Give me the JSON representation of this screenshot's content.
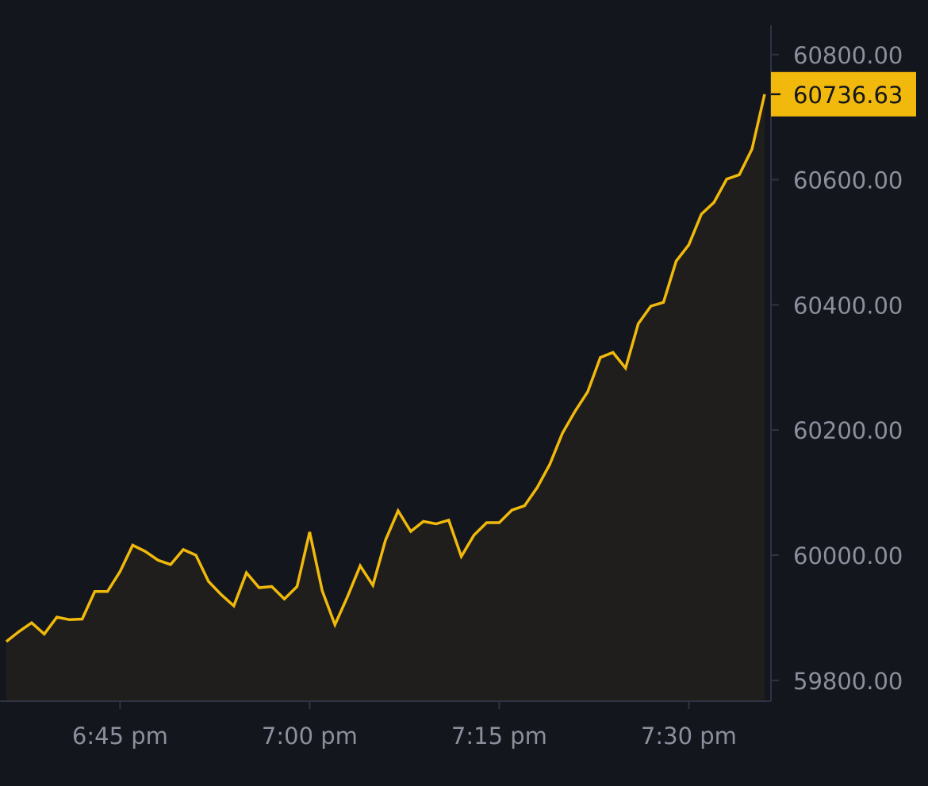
{
  "chart_data": {
    "type": "area",
    "x": [
      "6:36",
      "6:37",
      "6:38",
      "6:39",
      "6:40",
      "6:41",
      "6:42",
      "6:43",
      "6:44",
      "6:45",
      "6:46",
      "6:47",
      "6:48",
      "6:49",
      "6:50",
      "6:51",
      "6:52",
      "6:53",
      "6:54",
      "6:55",
      "6:56",
      "6:57",
      "6:58",
      "6:59",
      "7:00",
      "7:01",
      "7:02",
      "7:03",
      "7:04",
      "7:05",
      "7:06",
      "7:07",
      "7:08",
      "7:09",
      "7:10",
      "7:11",
      "7:12",
      "7:13",
      "7:14",
      "7:15",
      "7:16",
      "7:17",
      "7:18",
      "7:19",
      "7:20",
      "7:21",
      "7:22",
      "7:23",
      "7:24",
      "7:25",
      "7:26",
      "7:27",
      "7:28",
      "7:29",
      "7:30",
      "7:31",
      "7:32",
      "7:33",
      "7:34",
      "7:35",
      "7:36"
    ],
    "values": [
      59862,
      59878,
      59892,
      59874,
      59901,
      59897,
      59898,
      59942,
      59942,
      59974,
      60016,
      60006,
      59992,
      59985,
      60009,
      60000,
      59958,
      59937,
      59919,
      59972,
      59948,
      59950,
      59930,
      59950,
      60037,
      59943,
      59889,
      59934,
      59983,
      59952,
      60024,
      60071,
      60038,
      60054,
      60050,
      60056,
      59998,
      60032,
      60052,
      60052,
      60072,
      60079,
      60108,
      60145,
      60195,
      60230,
      60261,
      60316,
      60324,
      60299,
      60370,
      60398,
      60404,
      60470,
      60496,
      60545,
      60564,
      60601,
      60608,
      60649,
      60736.63
    ],
    "yticks": [
      "60800.00",
      "60600.00",
      "60400.00",
      "60200.00",
      "60000.00",
      "59800.00"
    ],
    "ytick_values": [
      60800,
      60600,
      60400,
      60200,
      60000,
      59800
    ],
    "xticks": [
      "6:45 pm",
      "7:00 pm",
      "7:15 pm",
      "7:30 pm"
    ],
    "xtick_positions": [
      "6:45",
      "7:00",
      "7:15",
      "7:30"
    ],
    "ylim": [
      59766,
      60840
    ],
    "last_price_label": "60736.63",
    "y_axis_side": "right",
    "grid": false,
    "colors": {
      "background": "#14161e",
      "line": "#f0b90b",
      "area_fill": "#1f1e1c",
      "axis": "#2f3342",
      "tick_text": "#8c909c",
      "price_tag_bg": "#f0b90b",
      "price_tag_text": "#14161e"
    }
  }
}
